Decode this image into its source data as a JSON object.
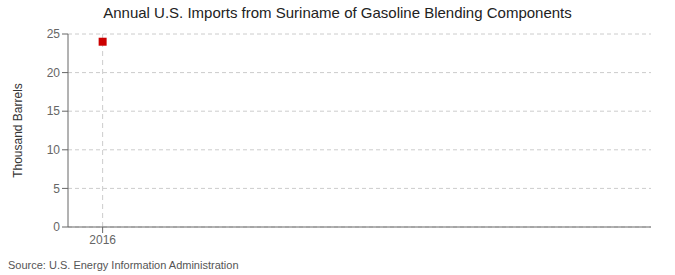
{
  "chart_data": {
    "type": "scatter",
    "title": "Annual U.S. Imports from Suriname of Gasoline Blending Components",
    "y_label": "Thousand Barrels",
    "annotation": "Source: U.S. Energy Information Administration",
    "x": [
      2016
    ],
    "values": [
      24
    ],
    "color": "#cc0000",
    "marker": "square",
    "xlim": [
      2015.4,
      2025.5
    ],
    "ylim": [
      0,
      25
    ],
    "xticks": [
      2016
    ],
    "yticks": [
      0,
      5,
      10,
      15,
      20,
      25
    ],
    "grid": true
  }
}
